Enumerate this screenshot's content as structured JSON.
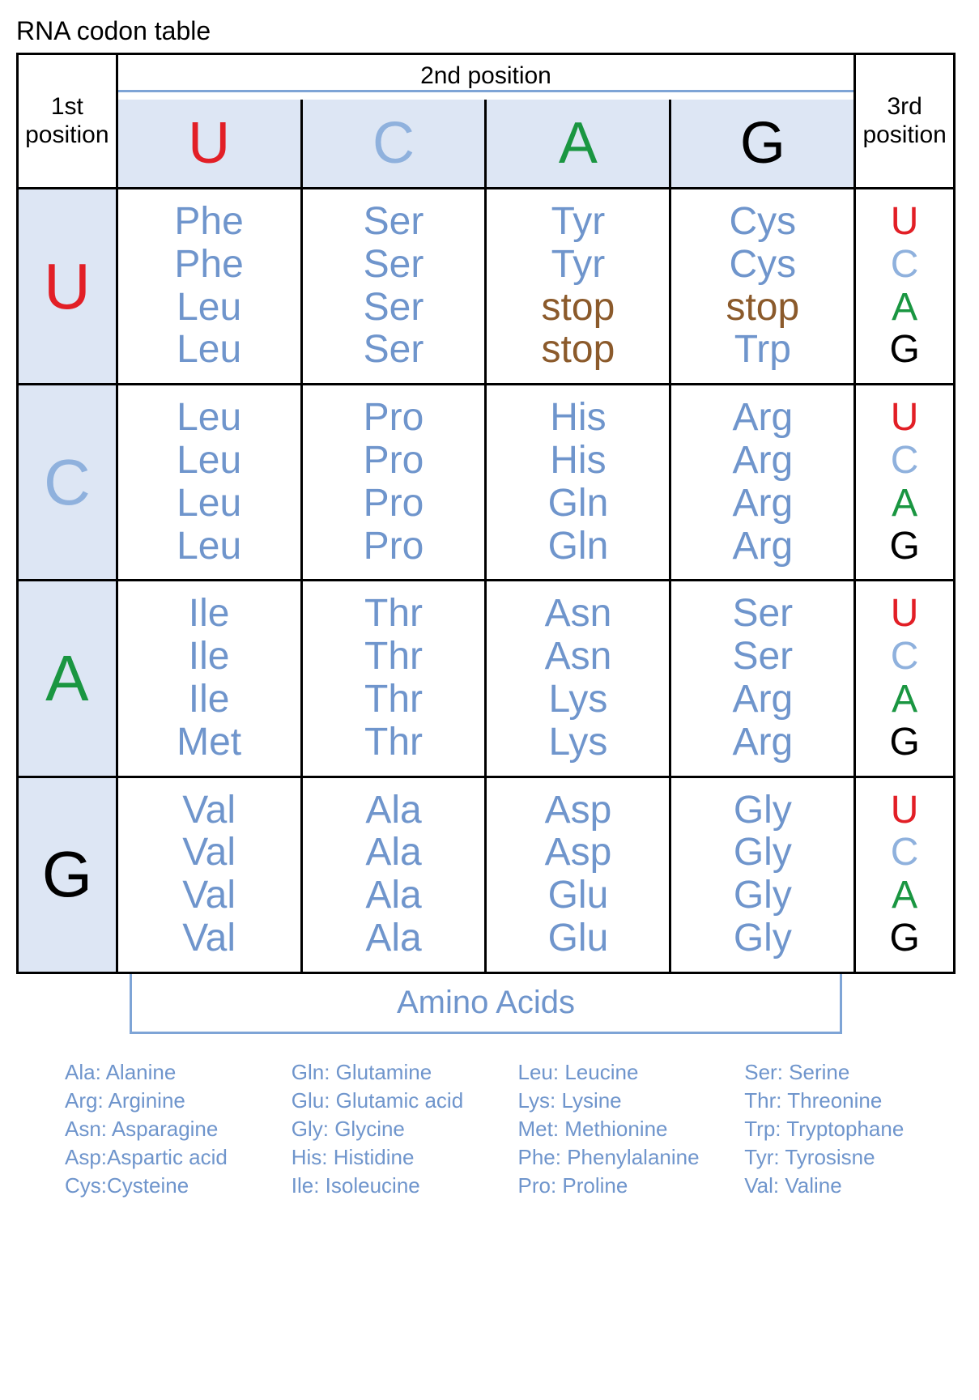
{
  "title": "RNA codon table",
  "labels": {
    "first": "1st\nposition",
    "second": "2nd position",
    "third": "3rd\nposition",
    "amino_acids": "Amino Acids"
  },
  "colors": {
    "U": "#e21f26",
    "C": "#8fb1dd",
    "A": "#1a9641",
    "G": "#000000",
    "amino": "#6f95cc",
    "stop": "#8b5a2b",
    "header_bg": "#dde6f4",
    "border": "#000000",
    "bracket": "#7ea4d6"
  },
  "bases": [
    "U",
    "C",
    "A",
    "G"
  ],
  "grid": [
    [
      [
        [
          "Phe",
          "aa"
        ],
        [
          "Phe",
          "aa"
        ],
        [
          "Leu",
          "aa"
        ],
        [
          "Leu",
          "aa"
        ]
      ],
      [
        [
          "Ser",
          "aa"
        ],
        [
          "Ser",
          "aa"
        ],
        [
          "Ser",
          "aa"
        ],
        [
          "Ser",
          "aa"
        ]
      ],
      [
        [
          "Tyr",
          "aa"
        ],
        [
          "Tyr",
          "aa"
        ],
        [
          "stop",
          "stop"
        ],
        [
          "stop",
          "stop"
        ]
      ],
      [
        [
          "Cys",
          "aa"
        ],
        [
          "Cys",
          "aa"
        ],
        [
          "stop",
          "stop"
        ],
        [
          "Trp",
          "aa"
        ]
      ]
    ],
    [
      [
        [
          "Leu",
          "aa"
        ],
        [
          "Leu",
          "aa"
        ],
        [
          "Leu",
          "aa"
        ],
        [
          "Leu",
          "aa"
        ]
      ],
      [
        [
          "Pro",
          "aa"
        ],
        [
          "Pro",
          "aa"
        ],
        [
          "Pro",
          "aa"
        ],
        [
          "Pro",
          "aa"
        ]
      ],
      [
        [
          "His",
          "aa"
        ],
        [
          "His",
          "aa"
        ],
        [
          "Gln",
          "aa"
        ],
        [
          "Gln",
          "aa"
        ]
      ],
      [
        [
          "Arg",
          "aa"
        ],
        [
          "Arg",
          "aa"
        ],
        [
          "Arg",
          "aa"
        ],
        [
          "Arg",
          "aa"
        ]
      ]
    ],
    [
      [
        [
          "Ile",
          "aa"
        ],
        [
          "Ile",
          "aa"
        ],
        [
          "Ile",
          "aa"
        ],
        [
          "Met",
          "aa"
        ]
      ],
      [
        [
          "Thr",
          "aa"
        ],
        [
          "Thr",
          "aa"
        ],
        [
          "Thr",
          "aa"
        ],
        [
          "Thr",
          "aa"
        ]
      ],
      [
        [
          "Asn",
          "aa"
        ],
        [
          "Asn",
          "aa"
        ],
        [
          "Lys",
          "aa"
        ],
        [
          "Lys",
          "aa"
        ]
      ],
      [
        [
          "Ser",
          "aa"
        ],
        [
          "Ser",
          "aa"
        ],
        [
          "Arg",
          "aa"
        ],
        [
          "Arg",
          "aa"
        ]
      ]
    ],
    [
      [
        [
          "Val",
          "aa"
        ],
        [
          "Val",
          "aa"
        ],
        [
          "Val",
          "aa"
        ],
        [
          "Val",
          "aa"
        ]
      ],
      [
        [
          "Ala",
          "aa"
        ],
        [
          "Ala",
          "aa"
        ],
        [
          "Ala",
          "aa"
        ],
        [
          "Ala",
          "aa"
        ]
      ],
      [
        [
          "Asp",
          "aa"
        ],
        [
          "Asp",
          "aa"
        ],
        [
          "Glu",
          "aa"
        ],
        [
          "Glu",
          "aa"
        ]
      ],
      [
        [
          "Gly",
          "aa"
        ],
        [
          "Gly",
          "aa"
        ],
        [
          "Gly",
          "aa"
        ],
        [
          "Gly",
          "aa"
        ]
      ]
    ]
  ],
  "legend": [
    [
      "Ala: Alanine",
      "Arg: Arginine",
      "Asn: Asparagine",
      "Asp:Aspartic acid",
      "Cys:Cysteine"
    ],
    [
      "Gln: Glutamine",
      "Glu: Glutamic acid",
      "Gly: Glycine",
      "His: Histidine",
      "Ile: Isoleucine"
    ],
    [
      "Leu: Leucine",
      "Lys: Lysine",
      "Met: Methionine",
      "Phe: Phenylalanine",
      "Pro: Proline"
    ],
    [
      "Ser: Serine",
      "Thr: Threonine",
      "Trp: Tryptophane",
      "Tyr: Tyrosisne",
      "Val: Valine"
    ]
  ]
}
